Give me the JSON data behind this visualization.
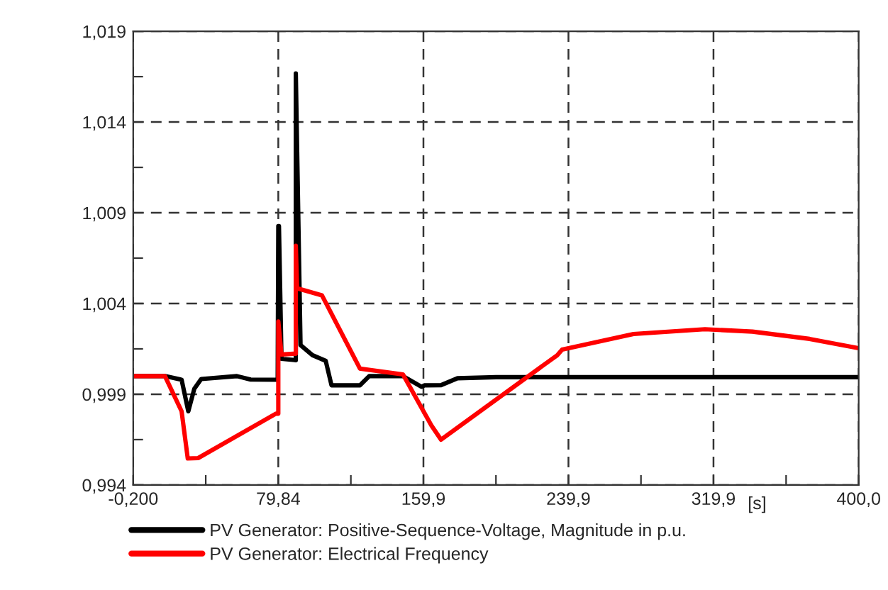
{
  "chart_data": {
    "type": "line",
    "xlabel": "[s]",
    "grid": true,
    "legend": "bottom",
    "line_style": "solid",
    "marker": "none",
    "xlim": [
      -0.2,
      400.0
    ],
    "ylim": [
      0.994,
      1.019
    ],
    "xticks": [
      {
        "value": -0.2,
        "label": "-0,200"
      },
      {
        "value": 39.82,
        "label": null
      },
      {
        "value": 79.84,
        "label": "79,84"
      },
      {
        "value": 119.87,
        "label": null
      },
      {
        "value": 159.9,
        "label": "159,9"
      },
      {
        "value": 199.9,
        "label": null
      },
      {
        "value": 239.9,
        "label": "239,9"
      },
      {
        "value": 279.9,
        "label": null
      },
      {
        "value": 319.9,
        "label": "319,9"
      },
      {
        "value": 359.95,
        "label": null
      },
      {
        "value": 400.0,
        "label": "400,0"
      }
    ],
    "yticks": [
      {
        "value": 0.994,
        "label": "0,994"
      },
      {
        "value": 0.9965,
        "label": null
      },
      {
        "value": 0.999,
        "label": "0,999"
      },
      {
        "value": 1.0015,
        "label": null
      },
      {
        "value": 1.004,
        "label": "1,004"
      },
      {
        "value": 1.0065,
        "label": null
      },
      {
        "value": 1.009,
        "label": "1,009"
      },
      {
        "value": 1.0115,
        "label": null
      },
      {
        "value": 1.014,
        "label": "1,014"
      },
      {
        "value": 1.0165,
        "label": null
      },
      {
        "value": 1.019,
        "label": "1,019"
      }
    ],
    "series": [
      {
        "name": "PV Generator: Positive-Sequence-Voltage, Magnitude in p.u.",
        "color": "#000000",
        "x": [
          -0.2,
          17.3,
          26.5,
          30.2,
          33.5,
          37.3,
          57.0,
          64.6,
          78.6,
          79.5,
          79.84,
          80.2,
          81.6,
          89.0,
          89.5,
          89.5,
          92.1,
          98.7,
          106.0,
          109.2,
          124.9,
          130.0,
          148.6,
          158.8,
          160.4,
          169.6,
          178.7,
          200.0,
          250.0,
          300.0,
          350.0,
          400.0
        ],
        "values": [
          1.0,
          1.0,
          0.9998,
          0.99806,
          0.9993,
          0.99984,
          1.0,
          0.99981,
          0.9998,
          0.9998,
          1.00827,
          1.00827,
          1.00095,
          1.00088,
          1.00088,
          1.01668,
          1.00171,
          1.00115,
          1.00084,
          0.99949,
          0.99949,
          1.0,
          1.0,
          0.99941,
          0.99949,
          0.9995,
          0.99988,
          0.99994,
          0.99994,
          0.99994,
          0.99994,
          0.99994
        ]
      },
      {
        "name": "PV Generator: Electrical Frequency",
        "color": "#ff0000",
        "x": [
          -0.2,
          17.3,
          26.5,
          29.9,
          35.6,
          78.5,
          79.84,
          79.84,
          81.6,
          88.2,
          89.5,
          89.5,
          90.2,
          103.9,
          124.9,
          148.6,
          164.3,
          169.6,
          233.7,
          236.4,
          275.8,
          315.2,
          341.4,
          372.9,
          400.0
        ],
        "values": [
          1.0,
          1.0,
          0.99806,
          0.99546,
          0.99548,
          0.99793,
          0.99793,
          1.00301,
          1.00119,
          1.00123,
          1.00123,
          1.00718,
          1.00484,
          1.00445,
          1.00041,
          1.00009,
          0.99728,
          0.9965,
          1.00115,
          1.00146,
          1.00232,
          1.00258,
          1.00245,
          1.00205,
          1.00154
        ]
      }
    ]
  }
}
